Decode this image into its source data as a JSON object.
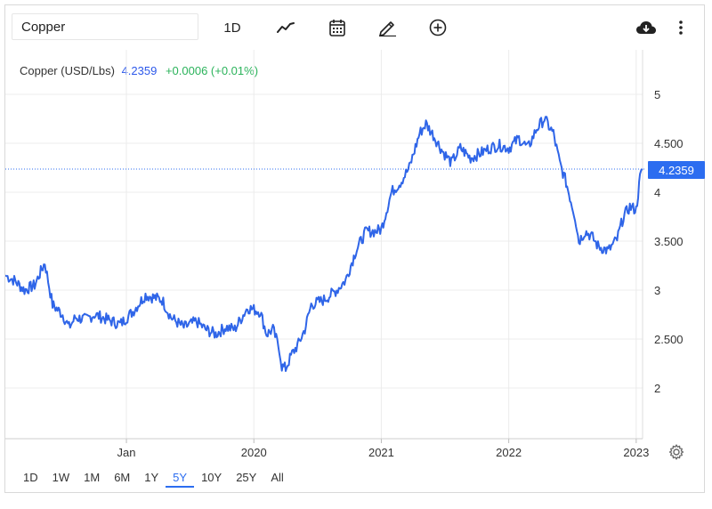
{
  "toolbar": {
    "symbol_value": "Copper",
    "range_label": "1D",
    "icons": [
      "line-chart-icon",
      "calendar-icon",
      "draw-icon",
      "add-icon",
      "download-cloud-icon",
      "more-vert-icon"
    ]
  },
  "legend": {
    "name": "Copper (USD/Lbs)",
    "price": "4.2359",
    "change": "+0.0006 (+0.01%)"
  },
  "price_tag": "4.2359",
  "range_buttons": [
    "1D",
    "1W",
    "1M",
    "6M",
    "1Y",
    "5Y",
    "10Y",
    "25Y",
    "All"
  ],
  "active_range": "5Y",
  "colors": {
    "line": "#2f65e8",
    "positive": "#2bb35b",
    "accent": "#2c6df0",
    "grid": "#ececec"
  },
  "chart_data": {
    "type": "line",
    "title": "",
    "xlabel": "",
    "ylabel": "",
    "ylim": [
      1.5,
      5.2
    ],
    "xlim": [
      2018.05,
      2023.05
    ],
    "x_ticks": [
      2019.0,
      2020.0,
      2021.0,
      2022.0,
      2023.0
    ],
    "x_tick_labels": [
      "Jan",
      "2020",
      "2021",
      "2022",
      "2023"
    ],
    "y_ticks": [
      2,
      2.5,
      3,
      3.5,
      4,
      4.5,
      5
    ],
    "y_tick_labels": [
      "2",
      "2.500",
      "3",
      "3.500",
      "4",
      "4.500",
      "5"
    ],
    "grid": true,
    "last_value": 4.2359,
    "series": [
      {
        "name": "",
        "x": [
          2018.05,
          2018.12,
          2018.2,
          2018.28,
          2018.36,
          2018.42,
          2018.5,
          2018.55,
          2018.6,
          2018.68,
          2018.75,
          2018.85,
          2018.95,
          2019.05,
          2019.15,
          2019.2,
          2019.28,
          2019.35,
          2019.45,
          2019.55,
          2019.62,
          2019.7,
          2019.78,
          2019.85,
          2019.95,
          2020.05,
          2020.1,
          2020.15,
          2020.2,
          2020.22,
          2020.25,
          2020.3,
          2020.35,
          2020.4,
          2020.45,
          2020.55,
          2020.65,
          2020.72,
          2020.8,
          2020.88,
          2020.95,
          2021.0,
          2021.08,
          2021.15,
          2021.22,
          2021.3,
          2021.35,
          2021.4,
          2021.48,
          2021.55,
          2021.62,
          2021.7,
          2021.78,
          2021.85,
          2021.92,
          2022.0,
          2022.08,
          2022.15,
          2022.22,
          2022.28,
          2022.35,
          2022.4,
          2022.45,
          2022.48,
          2022.52,
          2022.55,
          2022.6,
          2022.65,
          2022.7,
          2022.78,
          2022.85,
          2022.9,
          2022.95,
          2023.0,
          2023.03,
          2023.05
        ],
        "y": [
          3.15,
          3.1,
          3.0,
          3.05,
          3.28,
          2.85,
          2.75,
          2.62,
          2.72,
          2.7,
          2.75,
          2.7,
          2.65,
          2.78,
          2.95,
          2.93,
          2.9,
          2.72,
          2.62,
          2.68,
          2.6,
          2.55,
          2.62,
          2.6,
          2.82,
          2.78,
          2.55,
          2.6,
          2.4,
          2.22,
          2.2,
          2.35,
          2.45,
          2.6,
          2.85,
          2.9,
          3.0,
          3.1,
          3.4,
          3.6,
          3.6,
          3.62,
          4.0,
          4.1,
          4.25,
          4.6,
          4.7,
          4.6,
          4.42,
          4.3,
          4.45,
          4.35,
          4.4,
          4.45,
          4.48,
          4.45,
          4.55,
          4.45,
          4.65,
          4.75,
          4.6,
          4.3,
          4.1,
          3.95,
          3.75,
          3.5,
          3.6,
          3.55,
          3.45,
          3.4,
          3.52,
          3.75,
          3.85,
          3.82,
          4.15,
          4.2359
        ]
      }
    ]
  }
}
